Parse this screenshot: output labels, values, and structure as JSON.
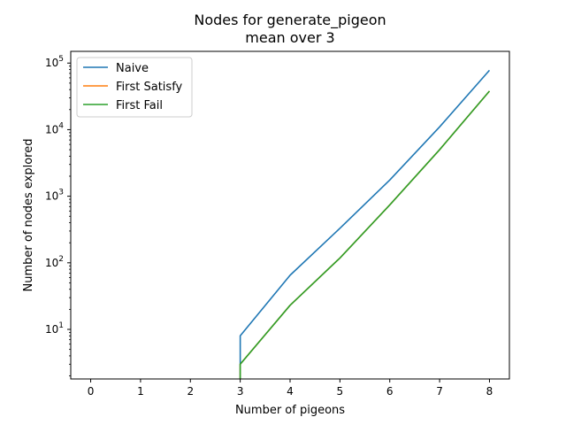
{
  "chart_data": {
    "type": "line",
    "title": "Nodes for generate_pigeon",
    "subtitle": "mean over 3",
    "xlabel": "Number of pigeons",
    "ylabel": "Number of nodes explored",
    "yscale": "log",
    "xlim": [
      -0.4,
      8.4
    ],
    "ylim": [
      1.8,
      150000
    ],
    "x_ticks": [
      "0",
      "1",
      "2",
      "3",
      "4",
      "5",
      "6",
      "7",
      "8"
    ],
    "y_ticks": [
      {
        "value": 10,
        "base": "10",
        "exp": "1"
      },
      {
        "value": 100,
        "base": "10",
        "exp": "2"
      },
      {
        "value": 1000,
        "base": "10",
        "exp": "3"
      },
      {
        "value": 10000,
        "base": "10",
        "exp": "4"
      },
      {
        "value": 100000,
        "base": "10",
        "exp": "5"
      }
    ],
    "grid": false,
    "legend_position": "top-left",
    "series": [
      {
        "name": "Naive",
        "color": "#1f77b4",
        "x": [
          3,
          3,
          4,
          5,
          6,
          7,
          8
        ],
        "y": [
          1.0,
          8,
          65,
          330,
          1750,
          11000,
          78000
        ]
      },
      {
        "name": "First Satisfy",
        "color": "#ff7f0e",
        "x": [
          3,
          3,
          4,
          5,
          6,
          7,
          8
        ],
        "y": [
          1.0,
          3,
          23,
          118,
          740,
          5000,
          38000
        ]
      },
      {
        "name": "First Fail",
        "color": "#2ca02c",
        "x": [
          3,
          3,
          4,
          5,
          6,
          7,
          8
        ],
        "y": [
          1.0,
          3,
          23,
          118,
          740,
          5000,
          38000
        ]
      }
    ]
  }
}
